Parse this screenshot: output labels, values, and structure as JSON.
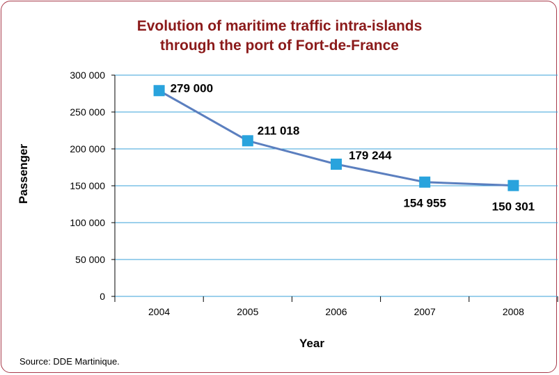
{
  "chart_data": {
    "type": "line",
    "title": "Evolution of maritime traffic intra-islands",
    "subtitle": "through the port of Fort-de-France",
    "xlabel": "Year",
    "ylabel": "Passenger",
    "categories": [
      "2004",
      "2005",
      "2006",
      "2007",
      "2008"
    ],
    "series": [
      {
        "values": [
          279000,
          211018,
          179244,
          154955,
          150301
        ],
        "labels": [
          "279 000",
          "211 018",
          "179 244",
          "154 955",
          "150 301"
        ]
      }
    ],
    "ylim": [
      0,
      300000
    ],
    "yticks": [
      "0",
      "50 000",
      "100 000",
      "150 000",
      "200 000",
      "250 000",
      "300 000"
    ],
    "grid": "horizontal",
    "line_color": "#5b7fbf",
    "marker_color": "#29a3dd",
    "grid_color": "#3aa0d8"
  },
  "source": "Source: DDE Martinique."
}
